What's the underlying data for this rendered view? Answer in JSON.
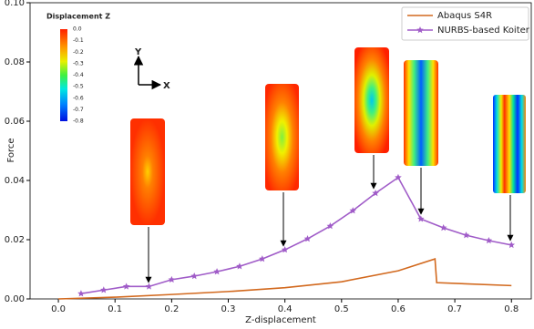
{
  "chart_data": {
    "type": "line",
    "x_label": "Z-displacement",
    "y_label": "Force",
    "xlim": [
      -0.05,
      0.835
    ],
    "ylim": [
      0,
      0.1
    ],
    "xticks": [
      {
        "value": 0,
        "label": "0.0"
      },
      0.1,
      0.2,
      0.3,
      0.4,
      0.5,
      0.6,
      0.7,
      0.8
    ],
    "yticks": [
      {
        "value": 0,
        "label": "0.00"
      },
      {
        "value": 0.02,
        "label": "0.02"
      },
      {
        "value": 0.04,
        "label": "0.04"
      },
      {
        "value": 0.06,
        "label": "0.06"
      },
      {
        "value": 0.08,
        "label": "0.08"
      },
      {
        "value": 0.1,
        "label": "0.10"
      }
    ],
    "legend": "upper right",
    "series": [
      {
        "name": "Abaqus S4R",
        "color": "#d2691e",
        "marker": "none",
        "x": [
          0,
          0.1,
          0.2,
          0.3,
          0.4,
          0.5,
          0.6,
          0.665,
          0.668,
          0.8
        ],
        "values": [
          0,
          0.0006,
          0.0015,
          0.0025,
          0.0038,
          0.0058,
          0.0095,
          0.0135,
          0.0055,
          0.0045
        ]
      },
      {
        "name": "NURBS-based Koiter",
        "color": "#a05cc8",
        "marker": "star",
        "x": [
          0.04,
          0.08,
          0.12,
          0.16,
          0.2,
          0.24,
          0.28,
          0.32,
          0.36,
          0.4,
          0.44,
          0.48,
          0.52,
          0.56,
          0.6,
          0.64,
          0.68,
          0.72,
          0.76,
          0.8
        ],
        "values": [
          0.0018,
          0.003,
          0.0042,
          0.0042,
          0.0065,
          0.0077,
          0.0092,
          0.011,
          0.0135,
          0.0166,
          0.0203,
          0.0246,
          0.0298,
          0.0357,
          0.041,
          0.027,
          0.024,
          0.0215,
          0.0197,
          0.0182
        ]
      }
    ],
    "colorbar": {
      "title": "Displacement Z",
      "ticks": [
        "0.0",
        "-0.1",
        "-0.2",
        "-0.3",
        "-0.4",
        "-0.5",
        "-0.6",
        "-0.7",
        "-0.8"
      ]
    },
    "axes_icon": {
      "y": "Y",
      "x": "X"
    }
  }
}
